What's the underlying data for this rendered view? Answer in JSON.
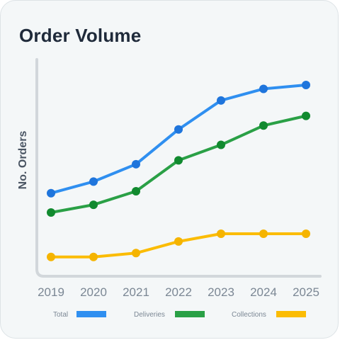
{
  "chart_data": {
    "type": "line",
    "title": "Order Volume",
    "ylabel": "No. Orders",
    "xlabel": "",
    "categories": [
      "2019",
      "2020",
      "2021",
      "2022",
      "2023",
      "2024",
      "2025"
    ],
    "series": [
      {
        "name": "Total",
        "color": "#1f75dc",
        "line_color": "#2f8ff0",
        "values": [
          43,
          49,
          58,
          76,
          91,
          97,
          99
        ]
      },
      {
        "name": "Deliveries",
        "color": "#118a2f",
        "line_color": "#2aa046",
        "values": [
          33,
          37,
          44,
          60,
          68,
          78,
          83
        ]
      },
      {
        "name": "Collections",
        "color": "#f5b400",
        "line_color": "#fbbc04",
        "values": [
          10,
          10,
          12,
          18,
          22,
          22,
          22
        ]
      }
    ],
    "ylim": [
      0,
      110
    ],
    "grid": false,
    "legend": "bottom"
  }
}
